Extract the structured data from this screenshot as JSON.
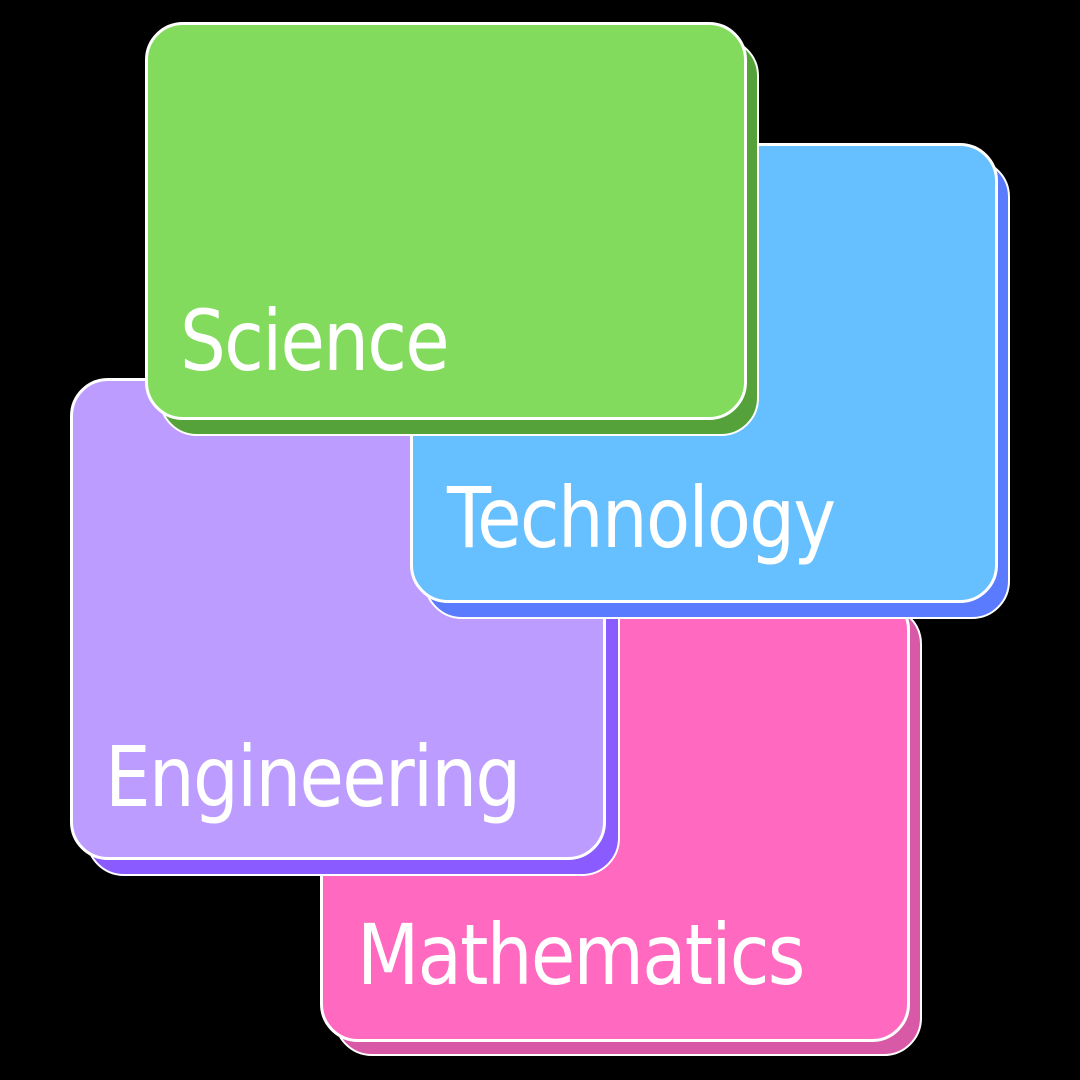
{
  "cards": {
    "science": {
      "label": "Science",
      "color": "#82db5c",
      "shadow_color": "#55a23a"
    },
    "technology": {
      "label": "Technology",
      "color": "#66bfff",
      "shadow_color": "#5b7bff"
    },
    "engineering": {
      "label": "Engineering",
      "color": "#bc9dff",
      "shadow_color": "#8a5cff"
    },
    "mathematics": {
      "label": "Mathematics",
      "color": "#ff69c0",
      "shadow_color": "#d85aa6"
    }
  },
  "background_color": "#000000"
}
